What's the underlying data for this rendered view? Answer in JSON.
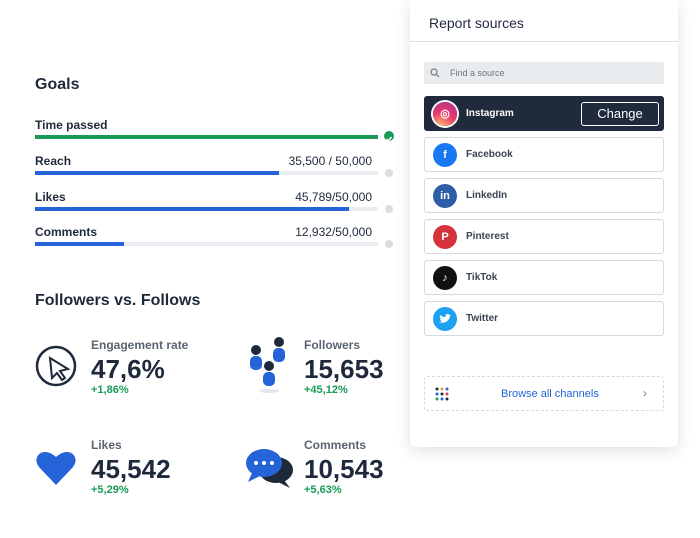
{
  "goals": {
    "title": "Goals",
    "items": [
      {
        "label": "Time passed"
      },
      {
        "label": "Reach",
        "value_label": "35,500 / 50,000",
        "value": 35500,
        "target": 50000
      },
      {
        "label": "Likes",
        "value_label": "45,789/50,000",
        "value": 45789,
        "target": 50000
      },
      {
        "label": "Comments",
        "value_label": "12,932/50,000",
        "value": 12932,
        "target": 50000
      }
    ]
  },
  "followers": {
    "title": "Followers vs. Follows",
    "stats": [
      {
        "label": "Engagement rate",
        "value": "47,6%",
        "change": "+1,86%"
      },
      {
        "label": "Followers",
        "value": "15,653",
        "change": "+45,12%"
      },
      {
        "label": "Likes",
        "value": "45,542",
        "change": "+5,29%"
      },
      {
        "label": "Comments",
        "value": "10,543",
        "change": "+5,63%"
      }
    ]
  },
  "report_sources": {
    "title": "Report sources",
    "search_placeholder": "Find a source",
    "sources": [
      "Instagram",
      "Facebook",
      "LinkedIn",
      "Pinterest",
      "TikTok",
      "Twitter"
    ],
    "change_button": "Change",
    "browse": "Browse all channels"
  }
}
